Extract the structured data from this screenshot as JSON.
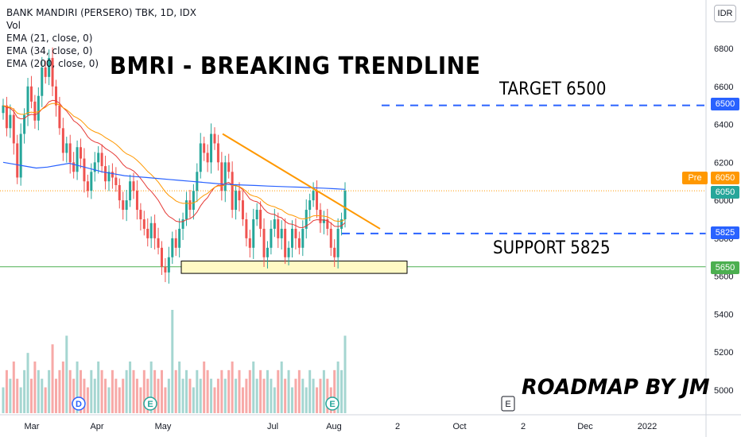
{
  "legend": {
    "symbol": "BANK MANDIRI (PERSERO) TBK, 1D, IDX",
    "vol": "Vol",
    "ema21": "EMA (21, close, 0)",
    "ema34": "EMA (34, close, 0)",
    "ema200": "EMA (200, close, 0)"
  },
  "annotations": {
    "headline": "BMRI - BREAKING TRENDLINE",
    "target": "TARGET 6500",
    "support": "SUPPORT 5825",
    "roadmap": "ROADMAP BY JM"
  },
  "currency": "IDR",
  "price_badges": {
    "pre_label": "Pre",
    "pre_value": "6050",
    "last_value": "6050",
    "target_value": "6500",
    "support_value": "5825",
    "base_value": "5650"
  },
  "colors": {
    "up": "#26a69a",
    "down": "#ef5350",
    "ema21": "#e53935",
    "ema34": "#ff9800",
    "ema200": "#2962ff",
    "trendline": "#ff9800",
    "target_line": "#2962ff",
    "base_line": "#4caf50",
    "support_box_fill": "#fff9c4",
    "dotted_price": "#ff9800"
  },
  "event_markers": [
    "D",
    "E",
    "E",
    "E"
  ],
  "chart_data": {
    "type": "candlestick",
    "title": "BANK MANDIRI (PERSERO) TBK, 1D, IDX",
    "y_axis_ticks": [
      6800,
      6600,
      6400,
      6200,
      6000,
      5800,
      5600,
      5400,
      5200,
      5000
    ],
    "y_axis_extra_labels": [
      "5650"
    ],
    "x_axis_ticks": [
      "Mar",
      "Apr",
      "May",
      "Jul",
      "Aug",
      "2",
      "Oct",
      "2",
      "Dec",
      "2022"
    ],
    "ylim": [
      4920,
      6900
    ],
    "close_series": [
      6500,
      6380,
      6450,
      6300,
      6120,
      6350,
      6450,
      6600,
      6520,
      6420,
      6550,
      6700,
      6650,
      6750,
      6600,
      6500,
      6380,
      6250,
      6300,
      6200,
      6150,
      6280,
      6220,
      6100,
      6050,
      6150,
      6200,
      6250,
      6180,
      6100,
      6150,
      6120,
      6080,
      6000,
      5950,
      6000,
      6100,
      6050,
      5950,
      5900,
      5850,
      5800,
      5880,
      5800,
      5750,
      5650,
      5620,
      5700,
      5800,
      5750,
      5850,
      5900,
      6000,
      5950,
      6050,
      6150,
      6300,
      6250,
      6200,
      6350,
      6300,
      6200,
      6050,
      6200,
      6150,
      5950,
      6050,
      6000,
      5900,
      5800,
      5750,
      5900,
      5950,
      5850,
      5700,
      5750,
      5850,
      5900,
      5800,
      5850,
      5700,
      5750,
      5850,
      5800,
      5750,
      5850,
      5950,
      6000,
      6050,
      5950,
      5880,
      5900,
      5850,
      5750,
      5700,
      5850,
      5900,
      6050
    ],
    "ema200_series": [
      6200,
      6190,
      6180,
      6170,
      6175,
      6185,
      6195,
      6180,
      6165,
      6150,
      6140,
      6130,
      6125,
      6120,
      6115,
      6110,
      6105,
      6100,
      6095,
      6090,
      6085,
      6082,
      6080,
      6078,
      6075,
      6073,
      6071,
      6069,
      6066,
      6064,
      6061,
      6058
    ],
    "trendline": {
      "from": 6350,
      "to": 5850
    },
    "support_box": {
      "low": 5615,
      "high": 5680
    },
    "levels": {
      "target": 6500,
      "support": 5825,
      "base": 5650,
      "last": 6050
    },
    "volume_series": [
      3,
      5,
      4,
      6,
      4,
      3,
      5,
      7,
      4,
      6,
      5,
      4,
      3,
      5,
      8,
      4,
      5,
      6,
      9,
      5,
      4,
      6,
      5,
      4,
      3,
      5,
      4,
      6,
      5,
      4,
      3,
      5,
      4,
      3,
      4,
      5,
      6,
      5,
      4,
      3,
      5,
      4,
      6,
      5,
      4,
      5,
      3,
      4,
      12,
      5,
      6,
      4,
      5,
      4,
      3,
      5,
      4,
      6,
      5,
      4,
      3,
      4,
      5,
      4,
      5,
      6,
      4,
      5,
      3,
      4,
      5,
      6,
      4,
      5,
      4,
      5,
      4,
      3,
      5,
      6,
      4,
      5,
      3,
      4,
      5,
      4,
      3,
      5,
      4,
      3,
      4,
      5,
      4,
      3,
      5,
      6,
      5,
      9
    ]
  }
}
